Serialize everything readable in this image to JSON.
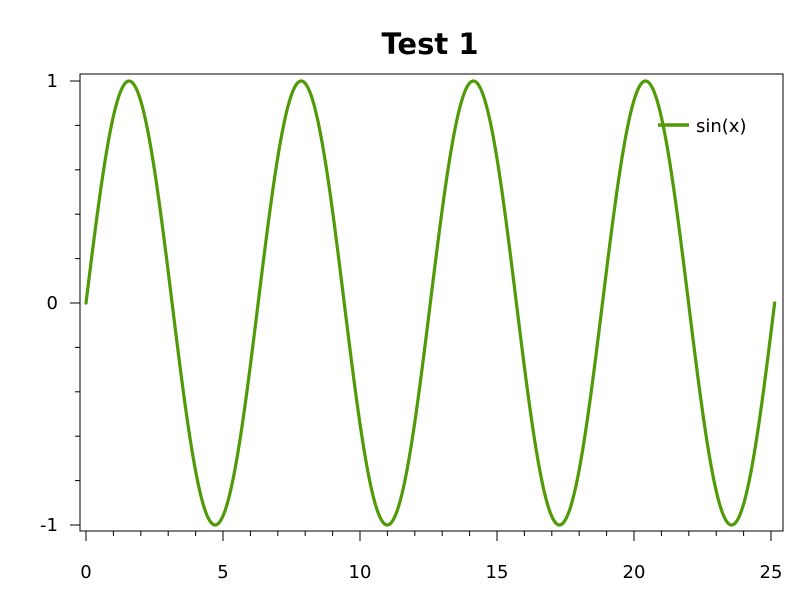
{
  "chart_data": {
    "type": "line",
    "title": "Test 1",
    "xlabel": "",
    "ylabel": "",
    "xlim": [
      0,
      25.133
    ],
    "ylim": [
      -1,
      1
    ],
    "x_ticks": [
      0,
      5,
      10,
      15,
      20,
      25
    ],
    "x_tick_labels": [
      "0",
      "5",
      "10",
      "15",
      "20",
      "25"
    ],
    "x_minor_step": 1,
    "y_ticks": [
      -1,
      0,
      1
    ],
    "y_tick_labels": [
      "-1",
      "0",
      "1"
    ],
    "y_minor_step": 0.2,
    "grid": false,
    "legend": {
      "position": "top-right",
      "entries": [
        "sin(x)"
      ]
    },
    "series": [
      {
        "name": "sin(x)",
        "color": "#4f9a06",
        "function": "sin(x)",
        "x_start": 0,
        "x_end": 25.133,
        "x": [
          0,
          1.571,
          3.142,
          4.712,
          6.283,
          7.854,
          9.425,
          10.996,
          12.566,
          14.137,
          15.708,
          17.279,
          18.85,
          20.42,
          21.991,
          23.562,
          25.133
        ],
        "y": [
          0,
          1,
          0,
          -1,
          0,
          1,
          0,
          -1,
          0,
          1,
          0,
          -1,
          0,
          1,
          0,
          -1,
          0
        ]
      }
    ]
  }
}
